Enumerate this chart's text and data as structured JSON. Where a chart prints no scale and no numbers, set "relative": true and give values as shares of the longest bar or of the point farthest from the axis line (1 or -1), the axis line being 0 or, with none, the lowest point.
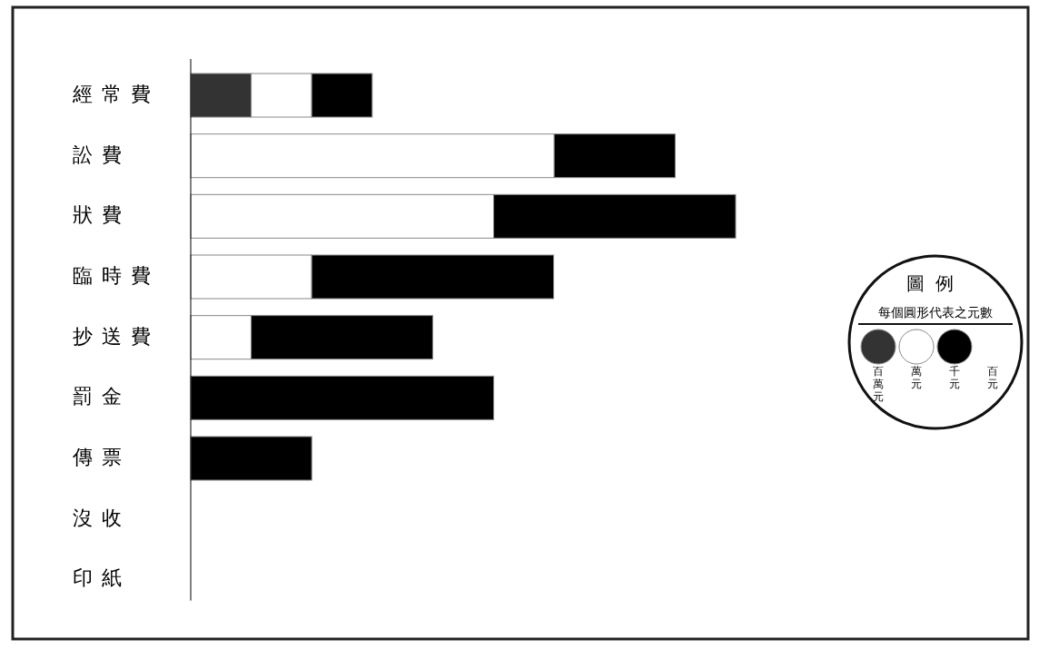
{
  "chart_data": {
    "type": "bar",
    "orientation": "horizontal",
    "stacked": true,
    "relative": true,
    "categories": [
      "經常費",
      "訟費",
      "狀費",
      "臨時費",
      "抄送費",
      "罰金",
      "傳票",
      "沒收",
      "印紙"
    ],
    "series": [
      {
        "name": "百萬元",
        "color": "#333333",
        "values": [
          0.111,
          null,
          null,
          null,
          null,
          null,
          null,
          null,
          null
        ]
      },
      {
        "name": "萬元",
        "color": "#ffffff",
        "values": [
          0.111,
          0.667,
          0.556,
          0.222,
          0.111,
          null,
          null,
          null,
          null
        ]
      },
      {
        "name": "千元",
        "color": "#000000",
        "values": [
          0.111,
          0.222,
          0.444,
          0.444,
          0.333,
          0.556,
          0.222,
          null,
          null
        ]
      }
    ],
    "legend": "right",
    "legend_title": "圖例",
    "annotations": [
      "每個圓形代表之元數",
      "百元"
    ]
  }
}
